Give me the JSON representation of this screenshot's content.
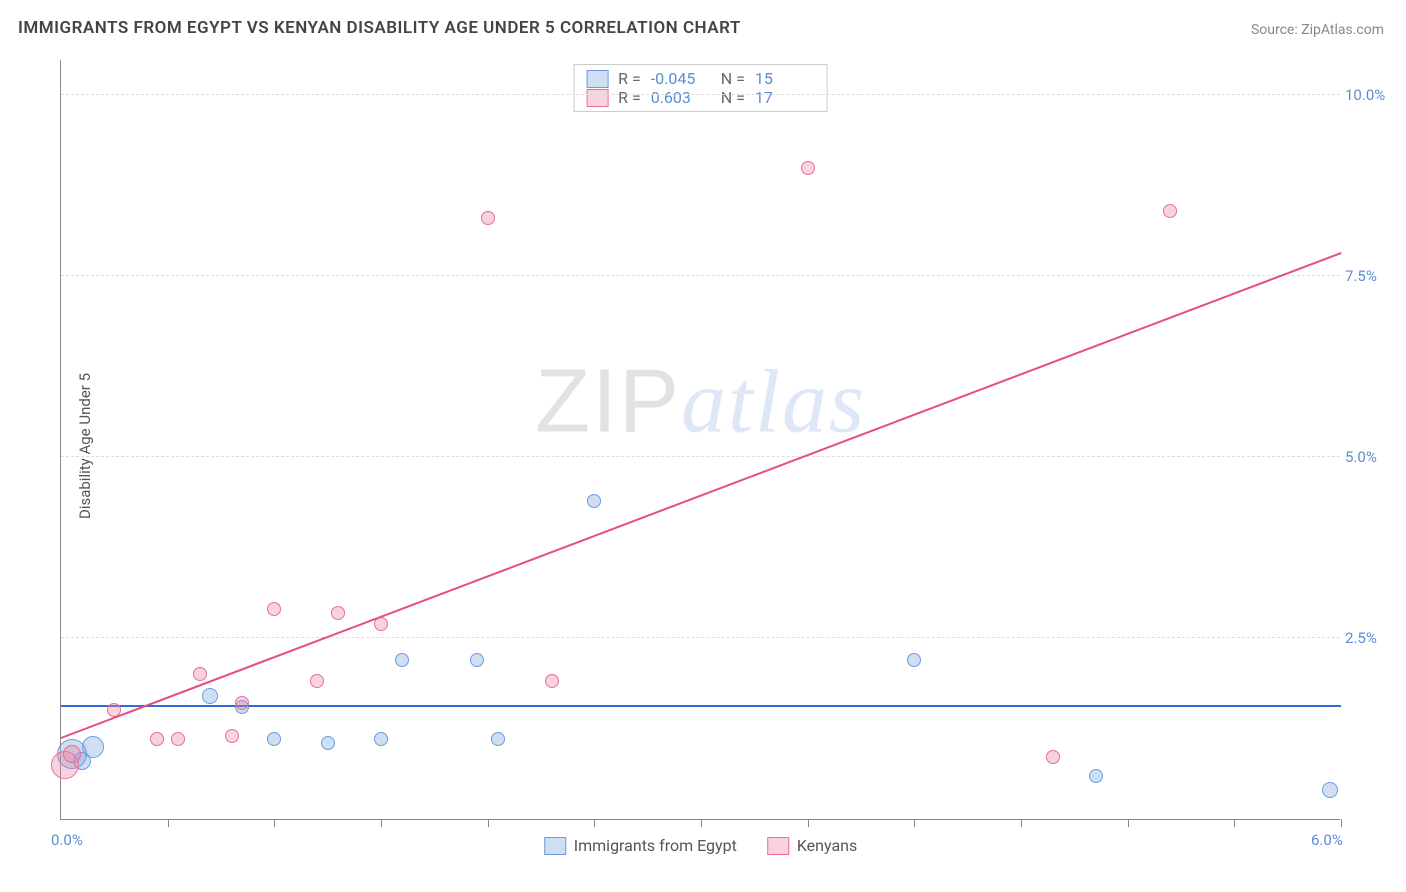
{
  "title": "IMMIGRANTS FROM EGYPT VS KENYAN DISABILITY AGE UNDER 5 CORRELATION CHART",
  "source_label": "Source:",
  "source_name": "ZipAtlas.com",
  "ylabel": "Disability Age Under 5",
  "watermark": {
    "part1": "ZIP",
    "part2": "atlas"
  },
  "chart": {
    "type": "scatter",
    "background_color": "#ffffff",
    "grid_color": "#dddddd",
    "axis_color": "#888888",
    "xlim": [
      0,
      6.0
    ],
    "ylim": [
      0,
      10.5
    ],
    "xticks": [
      0.5,
      1.0,
      1.5,
      2.0,
      2.5,
      3.0,
      3.5,
      4.0,
      4.5,
      5.0,
      5.5,
      6.0
    ],
    "xtick_labels_shown": {
      "0": "0.0%",
      "6": "6.0%"
    },
    "yticks": [
      2.5,
      5.0,
      7.5,
      10.0
    ],
    "ytick_format": "{v}%",
    "tick_label_color": "#5b8cd4",
    "tick_label_fontsize": 15,
    "series": [
      {
        "id": "egypt",
        "label": "Immigrants from Egypt",
        "color_fill": "rgba(120,160,220,0.35)",
        "color_stroke": "#6a9be0",
        "r_value": "-0.045",
        "n_value": "15",
        "points": [
          {
            "x": 0.05,
            "y": 0.9,
            "size": 30
          },
          {
            "x": 0.15,
            "y": 1.0,
            "size": 22
          },
          {
            "x": 0.1,
            "y": 0.8,
            "size": 18
          },
          {
            "x": 0.7,
            "y": 1.7,
            "size": 16
          },
          {
            "x": 0.85,
            "y": 1.55,
            "size": 14
          },
          {
            "x": 1.0,
            "y": 1.1,
            "size": 14
          },
          {
            "x": 1.25,
            "y": 1.05,
            "size": 14
          },
          {
            "x": 1.5,
            "y": 1.1,
            "size": 14
          },
          {
            "x": 1.6,
            "y": 2.2,
            "size": 14
          },
          {
            "x": 1.95,
            "y": 2.2,
            "size": 14
          },
          {
            "x": 2.05,
            "y": 1.1,
            "size": 14
          },
          {
            "x": 2.5,
            "y": 4.4,
            "size": 14
          },
          {
            "x": 4.0,
            "y": 2.2,
            "size": 14
          },
          {
            "x": 4.85,
            "y": 0.6,
            "size": 14
          },
          {
            "x": 5.95,
            "y": 0.4,
            "size": 16
          }
        ],
        "trend": {
          "y_at_xmin": 1.55,
          "y_at_xmax": 1.55,
          "color": "#2a6fd6",
          "width": 2
        }
      },
      {
        "id": "kenyans",
        "label": "Kenyans",
        "color_fill": "rgba(235,130,160,0.35)",
        "color_stroke": "#e86f96",
        "r_value": "0.603",
        "n_value": "17",
        "points": [
          {
            "x": 0.02,
            "y": 0.75,
            "size": 28
          },
          {
            "x": 0.05,
            "y": 0.9,
            "size": 18
          },
          {
            "x": 0.25,
            "y": 1.5,
            "size": 14
          },
          {
            "x": 0.45,
            "y": 1.1,
            "size": 14
          },
          {
            "x": 0.55,
            "y": 1.1,
            "size": 14
          },
          {
            "x": 0.65,
            "y": 2.0,
            "size": 14
          },
          {
            "x": 0.8,
            "y": 1.15,
            "size": 14
          },
          {
            "x": 0.85,
            "y": 1.6,
            "size": 14
          },
          {
            "x": 1.0,
            "y": 2.9,
            "size": 14
          },
          {
            "x": 1.2,
            "y": 1.9,
            "size": 14
          },
          {
            "x": 1.3,
            "y": 2.85,
            "size": 14
          },
          {
            "x": 1.5,
            "y": 2.7,
            "size": 14
          },
          {
            "x": 2.0,
            "y": 8.3,
            "size": 14
          },
          {
            "x": 2.3,
            "y": 1.9,
            "size": 14
          },
          {
            "x": 3.5,
            "y": 9.0,
            "size": 14
          },
          {
            "x": 4.65,
            "y": 0.85,
            "size": 14
          },
          {
            "x": 5.2,
            "y": 8.4,
            "size": 14
          }
        ],
        "trend": {
          "y_at_xmin": 1.1,
          "y_at_xmax": 7.8,
          "color": "#e54f7e",
          "width": 2
        }
      }
    ]
  },
  "legend_top": {
    "r_label": "R =",
    "n_label": "N ="
  }
}
